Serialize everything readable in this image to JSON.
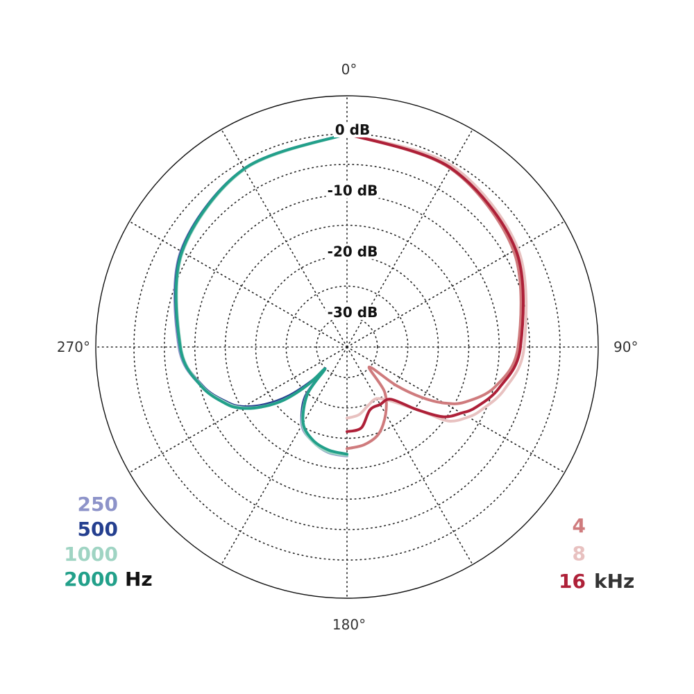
{
  "chart_data": {
    "type": "line",
    "subtype": "polar",
    "angle_labels": [
      {
        "angle": 0,
        "label": "0°"
      },
      {
        "angle": 90,
        "label": "90°"
      },
      {
        "angle": 180,
        "label": "180°"
      },
      {
        "angle": 270,
        "label": "270°"
      }
    ],
    "radial_labels": [
      "0 dB",
      "-10 dB",
      "-20 dB",
      "-30 dB"
    ],
    "radial_ticks": [
      0,
      -10,
      -20,
      -30
    ],
    "radial_range": [
      -35,
      0
    ],
    "angle_range_deg": [
      0,
      360
    ],
    "grid": true,
    "legend": {
      "left": {
        "entries": [
          "250",
          "500",
          "1000",
          "2000"
        ],
        "unit": "Hz",
        "placement": "bottom-left"
      },
      "right": {
        "entries": [
          "4",
          "8",
          "16"
        ],
        "unit": "kHz",
        "placement": "bottom-right"
      }
    },
    "series": [
      {
        "name": "250",
        "color": "#8d93c9",
        "side": "left",
        "points": [
          [
            0,
            0
          ],
          [
            30,
            -1.2
          ],
          [
            60,
            -3.5
          ],
          [
            90,
            -7.4
          ],
          [
            105,
            -10.2
          ],
          [
            115,
            -13.2
          ],
          [
            120,
            -15.2
          ],
          [
            125,
            -18.2
          ],
          [
            130,
            -22
          ],
          [
            134,
            -26.5
          ],
          [
            135,
            -29.9
          ],
          [
            140,
            -24.5
          ],
          [
            150,
            -20.2
          ],
          [
            160,
            -18.5
          ],
          [
            170,
            -17.4
          ],
          [
            180,
            -17.1
          ]
        ]
      },
      {
        "name": "500",
        "color": "#243f8f",
        "side": "left",
        "points": [
          [
            0,
            0
          ],
          [
            30,
            -1.2
          ],
          [
            60,
            -3.6
          ],
          [
            90,
            -7.6
          ],
          [
            105,
            -10.4
          ],
          [
            115,
            -13.4
          ],
          [
            120,
            -15.4
          ],
          [
            125,
            -18.5
          ],
          [
            130,
            -22.5
          ],
          [
            134,
            -27
          ],
          [
            135,
            -29.9
          ],
          [
            140,
            -24.3
          ],
          [
            150,
            -20.4
          ],
          [
            160,
            -18.6
          ],
          [
            170,
            -17.6
          ],
          [
            180,
            -17.3
          ]
        ]
      },
      {
        "name": "1000",
        "color": "#9fd4c3",
        "side": "left",
        "points": [
          [
            0,
            0
          ],
          [
            30,
            -1.3
          ],
          [
            60,
            -3.8
          ],
          [
            90,
            -7.7
          ],
          [
            105,
            -10.3
          ],
          [
            115,
            -13.2
          ],
          [
            120,
            -15.1
          ],
          [
            125,
            -17.9
          ],
          [
            130,
            -21.5
          ],
          [
            134,
            -26
          ],
          [
            135,
            -29.9
          ],
          [
            140,
            -24.8
          ],
          [
            150,
            -20.4
          ],
          [
            160,
            -18.5
          ],
          [
            170,
            -17.5
          ],
          [
            180,
            -17.2
          ]
        ]
      },
      {
        "name": "2000",
        "color": "#22a08a",
        "side": "left",
        "points": [
          [
            0,
            0
          ],
          [
            30,
            -1.2
          ],
          [
            60,
            -3.7
          ],
          [
            90,
            -7.6
          ],
          [
            105,
            -10.2
          ],
          [
            115,
            -13
          ],
          [
            120,
            -14.9
          ],
          [
            125,
            -17.8
          ],
          [
            130,
            -21.4
          ],
          [
            134,
            -26
          ],
          [
            135,
            -29.9
          ],
          [
            140,
            -24.9
          ],
          [
            150,
            -20.6
          ],
          [
            160,
            -18.7
          ],
          [
            170,
            -17.8
          ],
          [
            180,
            -17.4
          ]
        ]
      },
      {
        "name": "4",
        "color": "#cf7b7d",
        "side": "right",
        "points": [
          [
            0,
            0
          ],
          [
            30,
            -1.1
          ],
          [
            60,
            -3.4
          ],
          [
            90,
            -6.9
          ],
          [
            105,
            -9.8
          ],
          [
            115,
            -13.6
          ],
          [
            120,
            -16.6
          ],
          [
            124,
            -20.2
          ],
          [
            128,
            -24.8
          ],
          [
            132,
            -30.1
          ],
          [
            140,
            -25.4
          ],
          [
            150,
            -22.3
          ],
          [
            160,
            -19.8
          ],
          [
            170,
            -18.7
          ],
          [
            180,
            -18.3
          ]
        ]
      },
      {
        "name": "8",
        "color": "#e8c1c0",
        "side": "right",
        "points": [
          [
            0,
            0
          ],
          [
            30,
            -0.6
          ],
          [
            60,
            -2.6
          ],
          [
            90,
            -5.9
          ],
          [
            105,
            -8.2
          ],
          [
            115,
            -10.6
          ],
          [
            120,
            -12
          ],
          [
            126,
            -14.3
          ],
          [
            130,
            -18.2
          ],
          [
            140,
            -23.3
          ],
          [
            150,
            -25.2
          ],
          [
            160,
            -24.8
          ],
          [
            170,
            -23.7
          ],
          [
            180,
            -23.3
          ]
        ]
      },
      {
        "name": "16",
        "color": "#ae2038",
        "side": "right",
        "points": [
          [
            0,
            0
          ],
          [
            30,
            -1
          ],
          [
            60,
            -3
          ],
          [
            90,
            -6.5
          ],
          [
            105,
            -9.1
          ],
          [
            115,
            -11.6
          ],
          [
            120,
            -13.3
          ],
          [
            126,
            -15.5
          ],
          [
            132,
            -19.7
          ],
          [
            140,
            -23.8
          ],
          [
            150,
            -24.1
          ],
          [
            160,
            -24
          ],
          [
            170,
            -21.5
          ],
          [
            180,
            -21.1
          ]
        ]
      }
    ]
  }
}
